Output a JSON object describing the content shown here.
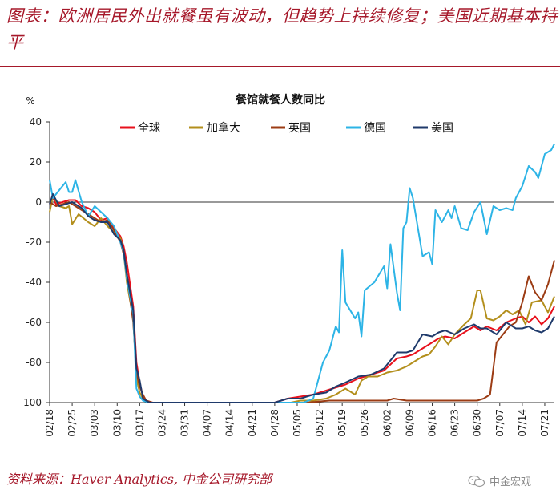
{
  "header": {
    "title": "图表：欧洲居民外出就餐虽有波动，但趋势上持续修复；美国近期基本持平"
  },
  "footer": {
    "source": "资料来源：Haver Analytics, 中金公司研究部",
    "watermark": "中金宏观"
  },
  "colors": {
    "accent": "#a6182a",
    "global": "#e8101c",
    "canada": "#b38f1c",
    "uk": "#9c3c14",
    "germany": "#2db4e6",
    "us": "#1f3a6b"
  },
  "chart_data": {
    "type": "line",
    "title": "餐馆就餐人数同比",
    "ylabel": "%",
    "xlabel": "",
    "ylim": [
      -100,
      40
    ],
    "yticks": [
      40,
      20,
      0,
      -20,
      -40,
      -60,
      -80,
      -100
    ],
    "grid": false,
    "legend_position": "top",
    "date_range": [
      "02/18",
      "07/24"
    ],
    "xticks": [
      "02/18",
      "02/25",
      "03/03",
      "03/10",
      "03/17",
      "03/24",
      "03/31",
      "04/07",
      "04/14",
      "04/21",
      "04/28",
      "05/05",
      "05/12",
      "05/19",
      "05/26",
      "06/02",
      "06/09",
      "06/16",
      "06/23",
      "06/30",
      "07/07",
      "07/14",
      "07/21"
    ],
    "series": [
      {
        "name": "全球",
        "color": "#e8101c",
        "points": [
          [
            "02/18",
            -1
          ],
          [
            "02/19",
            2
          ],
          [
            "02/20",
            -1
          ],
          [
            "02/22",
            0
          ],
          [
            "02/24",
            1
          ],
          [
            "02/26",
            1
          ],
          [
            "02/28",
            -2
          ],
          [
            "03/01",
            -3
          ],
          [
            "03/03",
            -5
          ],
          [
            "03/05",
            -9
          ],
          [
            "03/07",
            -8
          ],
          [
            "03/09",
            -13
          ],
          [
            "03/11",
            -17
          ],
          [
            "03/12",
            -22
          ],
          [
            "03/13",
            -30
          ],
          [
            "03/15",
            -52
          ],
          [
            "03/16",
            -80
          ],
          [
            "03/17",
            -90
          ],
          [
            "03/18",
            -97
          ],
          [
            "03/19",
            -99
          ],
          [
            "03/21",
            -100
          ],
          [
            "04/28",
            -100
          ],
          [
            "04/30",
            -99
          ],
          [
            "05/02",
            -98
          ],
          [
            "05/06",
            -97
          ],
          [
            "05/10",
            -96
          ],
          [
            "05/14",
            -94
          ],
          [
            "05/16",
            -93
          ],
          [
            "05/18",
            -92
          ],
          [
            "05/20",
            -91
          ],
          [
            "05/24",
            -88
          ],
          [
            "05/28",
            -86
          ],
          [
            "06/01",
            -84
          ],
          [
            "06/05",
            -78
          ],
          [
            "06/08",
            -77
          ],
          [
            "06/10",
            -76
          ],
          [
            "06/14",
            -72
          ],
          [
            "06/16",
            -70
          ],
          [
            "06/18",
            -68
          ],
          [
            "06/20",
            -67
          ],
          [
            "06/23",
            -68
          ],
          [
            "06/26",
            -65
          ],
          [
            "06/29",
            -62
          ],
          [
            "07/01",
            -64
          ],
          [
            "07/03",
            -62
          ],
          [
            "07/06",
            -64
          ],
          [
            "07/09",
            -60
          ],
          [
            "07/12",
            -58
          ],
          [
            "07/14",
            -57
          ],
          [
            "07/16",
            -60
          ],
          [
            "07/18",
            -57
          ],
          [
            "07/20",
            -61
          ],
          [
            "07/22",
            -58
          ],
          [
            "07/24",
            -52
          ]
        ]
      },
      {
        "name": "加拿大",
        "color": "#b38f1c",
        "points": [
          [
            "02/18",
            -5
          ],
          [
            "02/19",
            3
          ],
          [
            "02/21",
            -2
          ],
          [
            "02/23",
            -3
          ],
          [
            "02/24",
            -2
          ],
          [
            "02/25",
            -11
          ],
          [
            "02/27",
            -6
          ],
          [
            "03/01",
            -10
          ],
          [
            "03/03",
            -12
          ],
          [
            "03/05",
            -8
          ],
          [
            "03/07",
            -12
          ],
          [
            "03/09",
            -15
          ],
          [
            "03/11",
            -18
          ],
          [
            "03/12",
            -25
          ],
          [
            "03/13",
            -40
          ],
          [
            "03/15",
            -58
          ],
          [
            "03/16",
            -88
          ],
          [
            "03/17",
            -95
          ],
          [
            "03/18",
            -98
          ],
          [
            "03/20",
            -100
          ],
          [
            "05/03",
            -100
          ],
          [
            "05/06",
            -99
          ],
          [
            "05/10",
            -99
          ],
          [
            "05/14",
            -98
          ],
          [
            "05/17",
            -96
          ],
          [
            "05/20",
            -93
          ],
          [
            "05/23",
            -96
          ],
          [
            "05/25",
            -89
          ],
          [
            "05/27",
            -87
          ],
          [
            "05/30",
            -87
          ],
          [
            "06/02",
            -85
          ],
          [
            "06/05",
            -84
          ],
          [
            "06/08",
            -82
          ],
          [
            "06/10",
            -80
          ],
          [
            "06/13",
            -77
          ],
          [
            "06/15",
            -76
          ],
          [
            "06/17",
            -72
          ],
          [
            "06/19",
            -67
          ],
          [
            "06/21",
            -71
          ],
          [
            "06/23",
            -66
          ],
          [
            "06/26",
            -61
          ],
          [
            "06/28",
            -58
          ],
          [
            "06/30",
            -44
          ],
          [
            "07/01",
            -44
          ],
          [
            "07/03",
            -58
          ],
          [
            "07/05",
            -59
          ],
          [
            "07/07",
            -57
          ],
          [
            "07/09",
            -54
          ],
          [
            "07/11",
            -56
          ],
          [
            "07/13",
            -54
          ],
          [
            "07/15",
            -61
          ],
          [
            "07/17",
            -50
          ],
          [
            "07/20",
            -49
          ],
          [
            "07/22",
            -55
          ],
          [
            "07/24",
            -47
          ]
        ]
      },
      {
        "name": "英国",
        "color": "#9c3c14",
        "points": [
          [
            "02/18",
            0
          ],
          [
            "02/20",
            -2
          ],
          [
            "02/22",
            -1
          ],
          [
            "02/24",
            0
          ],
          [
            "02/26",
            -2
          ],
          [
            "02/28",
            -4
          ],
          [
            "03/01",
            -6
          ],
          [
            "03/03",
            -8
          ],
          [
            "03/05",
            -10
          ],
          [
            "03/07",
            -9
          ],
          [
            "03/09",
            -14
          ],
          [
            "03/11",
            -20
          ],
          [
            "03/12",
            -26
          ],
          [
            "03/13",
            -36
          ],
          [
            "03/15",
            -60
          ],
          [
            "03/16",
            -85
          ],
          [
            "03/17",
            -92
          ],
          [
            "03/18",
            -96
          ],
          [
            "03/19",
            -99
          ],
          [
            "03/21",
            -100
          ],
          [
            "05/08",
            -100
          ],
          [
            "05/15",
            -99
          ],
          [
            "05/20",
            -99
          ],
          [
            "06/02",
            -99
          ],
          [
            "06/04",
            -98
          ],
          [
            "06/08",
            -99
          ],
          [
            "06/15",
            -99
          ],
          [
            "06/30",
            -99
          ],
          [
            "07/02",
            -98
          ],
          [
            "07/04",
            -96
          ],
          [
            "07/06",
            -70
          ],
          [
            "07/08",
            -66
          ],
          [
            "07/10",
            -62
          ],
          [
            "07/12",
            -60
          ],
          [
            "07/14",
            -50
          ],
          [
            "07/16",
            -37
          ],
          [
            "07/18",
            -45
          ],
          [
            "07/20",
            -49
          ],
          [
            "07/22",
            -41
          ],
          [
            "07/24",
            -29
          ]
        ]
      },
      {
        "name": "德国",
        "color": "#2db4e6",
        "points": [
          [
            "02/18",
            11
          ],
          [
            "02/19",
            2
          ],
          [
            "02/21",
            6
          ],
          [
            "02/23",
            10
          ],
          [
            "02/24",
            5
          ],
          [
            "02/25",
            5
          ],
          [
            "02/26",
            11
          ],
          [
            "02/28",
            0
          ],
          [
            "03/01",
            -7
          ],
          [
            "03/03",
            -2
          ],
          [
            "03/05",
            -5
          ],
          [
            "03/07",
            -8
          ],
          [
            "03/09",
            -12
          ],
          [
            "03/11",
            -20
          ],
          [
            "03/12",
            -25
          ],
          [
            "03/13",
            -38
          ],
          [
            "03/15",
            -56
          ],
          [
            "03/16",
            -93
          ],
          [
            "03/17",
            -97
          ],
          [
            "03/18",
            -99
          ],
          [
            "03/20",
            -100
          ],
          [
            "05/07",
            -100
          ],
          [
            "05/10",
            -98
          ],
          [
            "05/13",
            -80
          ],
          [
            "05/15",
            -74
          ],
          [
            "05/17",
            -62
          ],
          [
            "05/18",
            -65
          ],
          [
            "05/19",
            -24
          ],
          [
            "05/20",
            -50
          ],
          [
            "05/23",
            -58
          ],
          [
            "05/24",
            -55
          ],
          [
            "05/25",
            -67
          ],
          [
            "05/26",
            -44
          ],
          [
            "05/29",
            -40
          ],
          [
            "06/01",
            -32
          ],
          [
            "06/02",
            -43
          ],
          [
            "06/03",
            -21
          ],
          [
            "06/05",
            -45
          ],
          [
            "06/06",
            -54
          ],
          [
            "06/07",
            -13
          ],
          [
            "06/08",
            -10
          ],
          [
            "06/09",
            7
          ],
          [
            "06/10",
            2
          ],
          [
            "06/13",
            -27
          ],
          [
            "06/15",
            -25
          ],
          [
            "06/16",
            -31
          ],
          [
            "06/17",
            -4
          ],
          [
            "06/19",
            -10
          ],
          [
            "06/21",
            -4
          ],
          [
            "06/22",
            -8
          ],
          [
            "06/23",
            -2
          ],
          [
            "06/25",
            -13
          ],
          [
            "06/27",
            -14
          ],
          [
            "06/29",
            -5
          ],
          [
            "07/01",
            0
          ],
          [
            "07/03",
            -16
          ],
          [
            "07/05",
            -2
          ],
          [
            "07/07",
            -4
          ],
          [
            "07/09",
            -3
          ],
          [
            "07/11",
            -4
          ],
          [
            "07/12",
            2
          ],
          [
            "07/14",
            8
          ],
          [
            "07/16",
            18
          ],
          [
            "07/18",
            15
          ],
          [
            "07/19",
            12
          ],
          [
            "07/21",
            24
          ],
          [
            "07/23",
            26
          ],
          [
            "07/24",
            29
          ]
        ]
      },
      {
        "name": "美国",
        "color": "#1f3a6b",
        "points": [
          [
            "02/18",
            -1
          ],
          [
            "02/19",
            4
          ],
          [
            "02/21",
            -2
          ],
          [
            "02/23",
            -1
          ],
          [
            "02/25",
            0
          ],
          [
            "02/27",
            -2
          ],
          [
            "02/28",
            -3
          ],
          [
            "03/01",
            -7
          ],
          [
            "03/03",
            -9
          ],
          [
            "03/05",
            -10
          ],
          [
            "03/07",
            -10
          ],
          [
            "03/09",
            -16
          ],
          [
            "03/11",
            -19
          ],
          [
            "03/12",
            -24
          ],
          [
            "03/13",
            -36
          ],
          [
            "03/15",
            -54
          ],
          [
            "03/16",
            -83
          ],
          [
            "03/17",
            -89
          ],
          [
            "03/18",
            -98
          ],
          [
            "03/20",
            -100
          ],
          [
            "04/28",
            -100
          ],
          [
            "04/30",
            -99
          ],
          [
            "05/02",
            -98
          ],
          [
            "05/06",
            -98
          ],
          [
            "05/10",
            -96
          ],
          [
            "05/14",
            -95
          ],
          [
            "05/17",
            -92
          ],
          [
            "05/20",
            -90
          ],
          [
            "05/24",
            -87
          ],
          [
            "05/28",
            -86
          ],
          [
            "06/01",
            -83
          ],
          [
            "06/05",
            -75
          ],
          [
            "06/08",
            -75
          ],
          [
            "06/10",
            -74
          ],
          [
            "06/13",
            -66
          ],
          [
            "06/16",
            -67
          ],
          [
            "06/18",
            -65
          ],
          [
            "06/20",
            -64
          ],
          [
            "06/23",
            -66
          ],
          [
            "06/26",
            -63
          ],
          [
            "06/29",
            -61
          ],
          [
            "07/01",
            -63
          ],
          [
            "07/03",
            -63
          ],
          [
            "07/06",
            -66
          ],
          [
            "07/09",
            -60
          ],
          [
            "07/12",
            -63
          ],
          [
            "07/14",
            -63
          ],
          [
            "07/16",
            -62
          ],
          [
            "07/18",
            -64
          ],
          [
            "07/20",
            -65
          ],
          [
            "07/22",
            -63
          ],
          [
            "07/24",
            -57
          ]
        ]
      }
    ]
  }
}
